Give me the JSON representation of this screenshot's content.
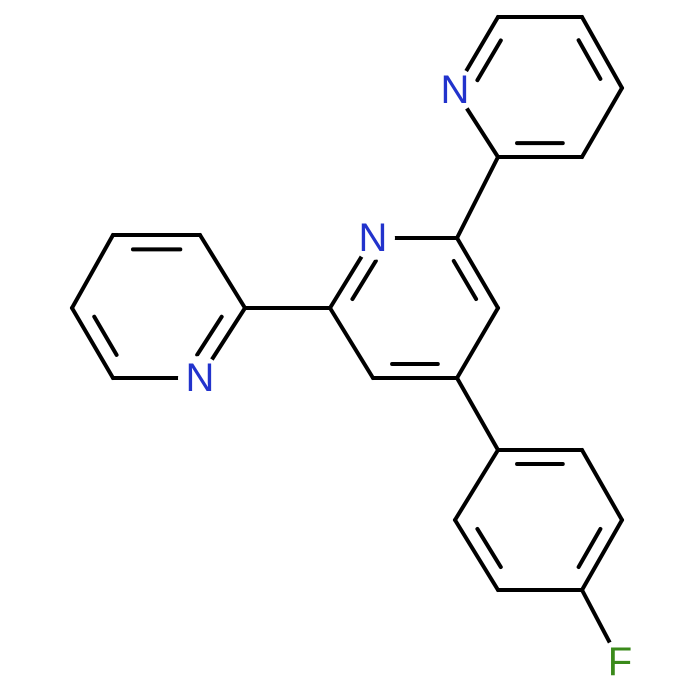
{
  "atoms": {
    "n_top": "N",
    "n_center": "N",
    "n_left": "N",
    "f": "F"
  }
}
